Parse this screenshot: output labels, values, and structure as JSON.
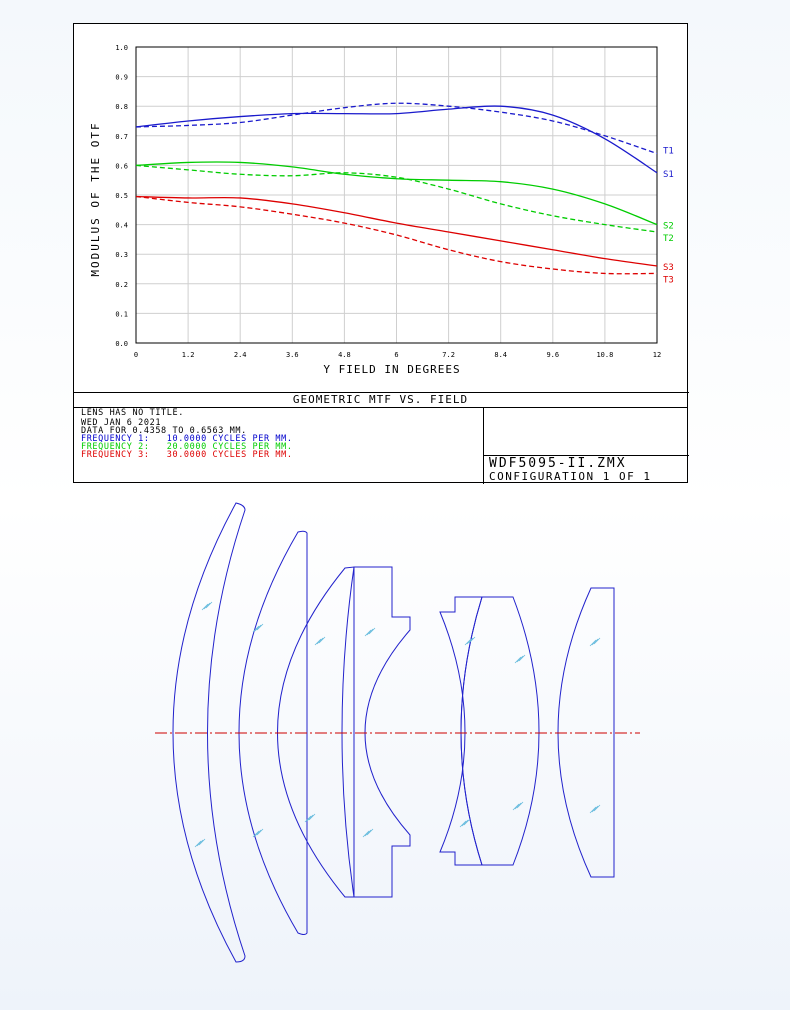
{
  "mtf_plot": {
    "title": "GEOMETRIC MTF VS. FIELD",
    "info_lines": [
      {
        "text": "LENS HAS NO TITLE.",
        "color": "#000000"
      },
      {
        "text": "WED JAN 6 2021",
        "color": "#000000"
      },
      {
        "text": "DATA FOR 0.4358 TO 0.6563 µm.",
        "color": "#000000"
      },
      {
        "text": "FREQUENCY 1:   10.0000 CYCLES PER MM.",
        "color": "#0000cc"
      },
      {
        "text": "FREQUENCY 2:   20.0000 CYCLES PER MM.",
        "color": "#00cc00"
      },
      {
        "text": "FREQUENCY 3:   30.0000 CYCLES PER MM.",
        "color": "#dd0000"
      }
    ],
    "file_name": "WDF5095-II.ZMX",
    "configuration": "CONFIGURATION 1 OF 1"
  },
  "chart_data": {
    "type": "line",
    "xlabel": "Y FIELD IN DEGREES",
    "ylabel": "MODULUS OF THE OTF",
    "x_ticks": [
      "0",
      "1.2",
      "2.4",
      "3.6",
      "4.8",
      "6",
      "7.2",
      "8.4",
      "9.6",
      "10.8",
      "12"
    ],
    "y_ticks": [
      "0.0",
      "0.1",
      "0.2",
      "0.3",
      "0.4",
      "0.5",
      "0.6",
      "0.7",
      "0.8",
      "0.9",
      "1.0"
    ],
    "xlim": [
      0,
      12
    ],
    "ylim": [
      0,
      1
    ],
    "grid": true,
    "x": [
      0,
      1.2,
      2.4,
      3.6,
      4.8,
      6,
      7.2,
      8.4,
      9.6,
      10.8,
      12
    ],
    "series": [
      {
        "name": "S1",
        "color": "#1a1acc",
        "dashed": false,
        "values": [
          0.73,
          0.75,
          0.765,
          0.775,
          0.775,
          0.775,
          0.79,
          0.8,
          0.77,
          0.69,
          0.575
        ]
      },
      {
        "name": "T1",
        "color": "#1a1acc",
        "dashed": true,
        "values": [
          0.73,
          0.735,
          0.745,
          0.77,
          0.795,
          0.81,
          0.8,
          0.78,
          0.75,
          0.7,
          0.64
        ]
      },
      {
        "name": "S2",
        "color": "#00cc00",
        "dashed": false,
        "values": [
          0.6,
          0.61,
          0.61,
          0.595,
          0.57,
          0.555,
          0.55,
          0.545,
          0.52,
          0.47,
          0.4
        ]
      },
      {
        "name": "T2",
        "color": "#00cc00",
        "dashed": true,
        "values": [
          0.6,
          0.585,
          0.57,
          0.565,
          0.575,
          0.56,
          0.52,
          0.47,
          0.43,
          0.4,
          0.375
        ]
      },
      {
        "name": "S3",
        "color": "#dd0000",
        "dashed": false,
        "values": [
          0.495,
          0.49,
          0.49,
          0.47,
          0.44,
          0.405,
          0.375,
          0.345,
          0.315,
          0.285,
          0.26
        ]
      },
      {
        "name": "T3",
        "color": "#dd0000",
        "dashed": true,
        "values": [
          0.495,
          0.475,
          0.46,
          0.435,
          0.405,
          0.365,
          0.315,
          0.275,
          0.25,
          0.235,
          0.235
        ]
      }
    ]
  },
  "lens_layout": {
    "line_color": "#2222cc",
    "axis_color": "#cc0000"
  }
}
